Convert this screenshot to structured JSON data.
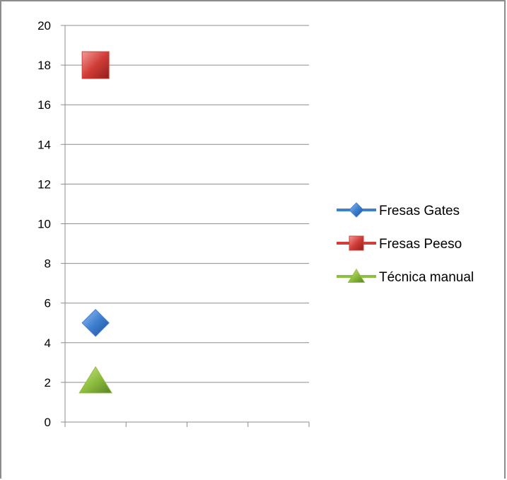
{
  "chart_data": {
    "type": "scatter",
    "title": "",
    "xlabel": "",
    "ylabel": "",
    "ylim": [
      0,
      20
    ],
    "yticks": [
      0,
      2,
      4,
      6,
      8,
      10,
      12,
      14,
      16,
      18,
      20
    ],
    "grid": "horizontal",
    "legend": "right",
    "series": [
      {
        "name": "Fresas Gates",
        "x": [
          1
        ],
        "y": [
          5
        ],
        "color": "#3f7fd0",
        "marker": "diamond"
      },
      {
        "name": "Fresas Peeso",
        "x": [
          1
        ],
        "y": [
          18
        ],
        "color": "#d13d38",
        "marker": "square"
      },
      {
        "name": "Técnica manual",
        "x": [
          1
        ],
        "y": [
          2
        ],
        "color": "#8fbf3f",
        "marker": "triangle"
      }
    ]
  }
}
